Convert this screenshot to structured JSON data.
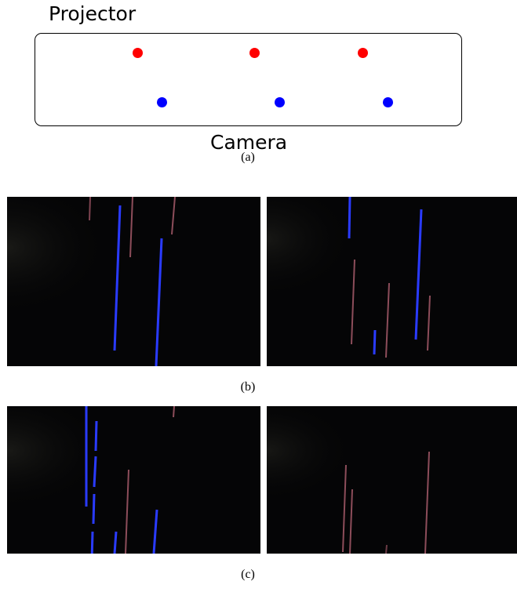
{
  "diagram": {
    "projector_label": "Projector",
    "camera_label": "Camera",
    "colors": {
      "projector_dot": "#ff0000",
      "camera_dot": "#0000ff"
    }
  },
  "captions": {
    "a": "(a)",
    "b": "(b)",
    "c": "(c)"
  },
  "colors": {
    "photo_background": "#050506",
    "blue_streak": "#2a3bff",
    "red_streak": "#b05a6a"
  }
}
